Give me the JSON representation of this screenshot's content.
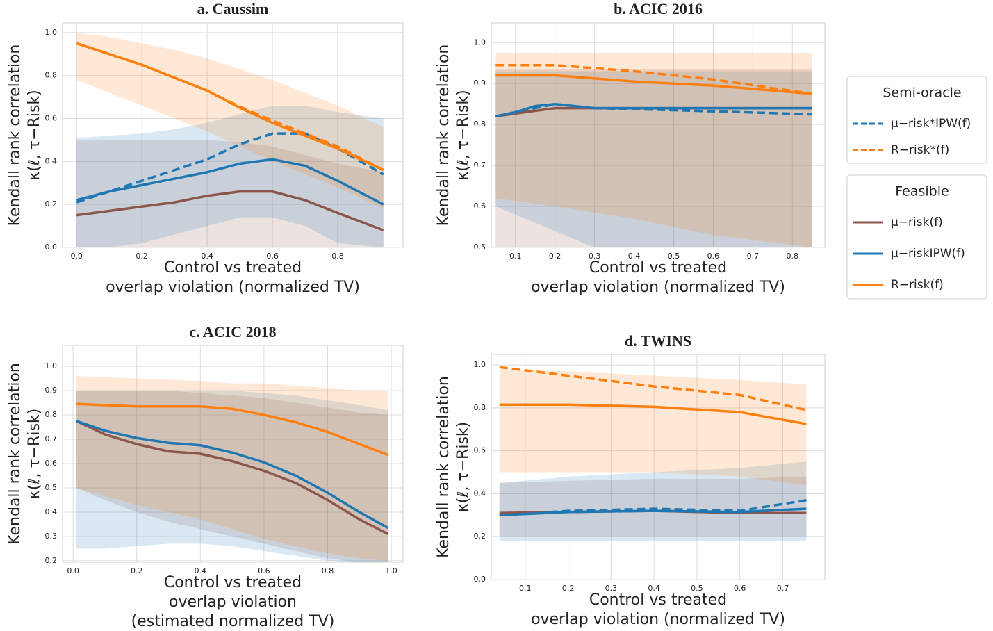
{
  "chart_data": [
    {
      "type": "line",
      "title": "a. Caussim",
      "xlabel": [
        "Control vs treated",
        "overlap violation (normalized TV)"
      ],
      "ylabel": [
        "Kendall rank correlation",
        "κ(ℓ, τ−Risk)"
      ],
      "xlim": [
        -0.043,
        1.0
      ],
      "ylim": [
        0,
        1.045
      ],
      "xticks": [
        {
          "value": 0,
          "label": "0.0"
        },
        0.2,
        0.4,
        0.6,
        0.8
      ],
      "yticks": [
        {
          "value": 0,
          "label": "0.0"
        },
        0.2,
        0.4,
        0.6,
        0.8,
        {
          "value": 1,
          "label": "1.0"
        }
      ],
      "grid": true,
      "series": [
        {
          "name": "μ−risk*IPW(f)",
          "color": "#1f77b4",
          "style": "dashed",
          "x": [
            0,
            0.1,
            0.2,
            0.3,
            0.4,
            0.5,
            0.6,
            0.7,
            0.8,
            0.94
          ],
          "values": [
            0.21,
            0.26,
            0.31,
            0.36,
            0.41,
            0.48,
            0.53,
            0.53,
            0.46,
            0.34
          ]
        },
        {
          "name": "R−risk*(f)",
          "color": "#ff7f0e",
          "style": "dashed",
          "x": [
            0,
            0.1,
            0.2,
            0.3,
            0.4,
            0.5,
            0.6,
            0.7,
            0.8,
            0.94
          ],
          "values": [
            0.95,
            0.9,
            0.85,
            0.79,
            0.73,
            0.655,
            0.59,
            0.53,
            0.47,
            0.36
          ]
        },
        {
          "name": "μ−risk(f)",
          "color": "#8c564b",
          "style": "solid",
          "x": [
            0,
            0.1,
            0.2,
            0.3,
            0.4,
            0.5,
            0.6,
            0.7,
            0.8,
            0.94
          ],
          "values": [
            0.15,
            0.17,
            0.19,
            0.21,
            0.24,
            0.26,
            0.26,
            0.22,
            0.16,
            0.08
          ],
          "lower": [
            0,
            0,
            0,
            0,
            0,
            0,
            0,
            0,
            0,
            0
          ],
          "upper": [
            0.5,
            0.5,
            0.5,
            0.5,
            0.5,
            0.49,
            0.47,
            0.43,
            0.39,
            0.35
          ]
        },
        {
          "name": "μ−riskIPW(f)",
          "color": "#1f77b4",
          "style": "solid",
          "x": [
            0,
            0.1,
            0.2,
            0.3,
            0.4,
            0.5,
            0.6,
            0.7,
            0.8,
            0.94
          ],
          "values": [
            0.22,
            0.26,
            0.29,
            0.32,
            0.35,
            0.39,
            0.41,
            0.38,
            0.31,
            0.2
          ],
          "lower": [
            0,
            0,
            0.02,
            0.06,
            0.1,
            0.14,
            0.14,
            0.1,
            0.02,
            0
          ],
          "upper": [
            0.51,
            0.52,
            0.53,
            0.55,
            0.58,
            0.62,
            0.66,
            0.66,
            0.63,
            0.6
          ]
        },
        {
          "name": "R−risk(f)",
          "color": "#ff7f0e",
          "style": "solid",
          "x": [
            0,
            0.1,
            0.2,
            0.3,
            0.4,
            0.5,
            0.6,
            0.7,
            0.8,
            0.94
          ],
          "values": [
            0.95,
            0.9,
            0.85,
            0.79,
            0.73,
            0.65,
            0.58,
            0.52,
            0.46,
            0.36
          ],
          "lower": [
            0.78,
            0.72,
            0.66,
            0.6,
            0.54,
            0.47,
            0.4,
            0.34,
            0.28,
            0.18
          ],
          "upper": [
            1.0,
            0.98,
            0.95,
            0.92,
            0.88,
            0.83,
            0.78,
            0.72,
            0.66,
            0.56
          ]
        }
      ]
    },
    {
      "type": "line",
      "title": "b. ACIC 2016",
      "xlabel": [
        "Control vs treated",
        "overlap violation (normalized TV)"
      ],
      "ylabel": [
        "Kendall rank correlation",
        "κ(ℓ, τ−Risk)"
      ],
      "xlim": [
        0.039,
        0.882
      ],
      "ylim": [
        0.5,
        1.048
      ],
      "xticks": [
        0.1,
        0.2,
        0.3,
        0.4,
        0.5,
        0.6,
        0.7,
        0.8
      ],
      "yticks": [
        0.5,
        0.6,
        0.7,
        0.8,
        0.9,
        {
          "value": 1,
          "label": "1.0"
        }
      ],
      "grid": true,
      "series": [
        {
          "color": "#1f77b4",
          "style": "dashed",
          "x": [
            0.05,
            0.1,
            0.2,
            0.3,
            0.5,
            0.85
          ],
          "values": [
            0.82,
            0.83,
            0.85,
            0.84,
            0.835,
            0.825
          ]
        },
        {
          "color": "#ff7f0e",
          "style": "dashed",
          "x": [
            0.05,
            0.2,
            0.4,
            0.6,
            0.85
          ],
          "values": [
            0.945,
            0.945,
            0.93,
            0.91,
            0.875
          ]
        },
        {
          "color": "#8c564b",
          "style": "solid",
          "x": [
            0.05,
            0.2,
            0.4,
            0.6,
            0.85
          ],
          "values": [
            0.82,
            0.84,
            0.84,
            0.84,
            0.84
          ],
          "lower": [
            0.5,
            0.5,
            0.5,
            0.5,
            0.5
          ],
          "upper": [
            0.935,
            0.935,
            0.935,
            0.935,
            0.935
          ]
        },
        {
          "color": "#1f77b4",
          "style": "solid",
          "x": [
            0.05,
            0.1,
            0.15,
            0.2,
            0.25,
            0.3,
            0.5,
            0.85
          ],
          "values": [
            0.82,
            0.83,
            0.845,
            0.85,
            0.845,
            0.84,
            0.84,
            0.84
          ],
          "lower": [
            0.6,
            0.58,
            0.56,
            0.54,
            0.52,
            0.5,
            0.5,
            0.5
          ],
          "upper": [
            0.93,
            0.93,
            0.93,
            0.93,
            0.93,
            0.93,
            0.93,
            0.93
          ]
        },
        {
          "color": "#ff7f0e",
          "style": "solid",
          "x": [
            0.05,
            0.2,
            0.4,
            0.6,
            0.85
          ],
          "values": [
            0.92,
            0.92,
            0.905,
            0.895,
            0.875
          ],
          "lower": [
            0.62,
            0.6,
            0.57,
            0.53,
            0.5
          ],
          "upper": [
            0.975,
            0.975,
            0.975,
            0.975,
            0.975
          ]
        }
      ]
    },
    {
      "type": "line",
      "title": "c. ACIC 2018",
      "xlabel": [
        "Control vs treated",
        "overlap violation",
        "(estimated normalized TV)"
      ],
      "ylabel": [
        "Kendall rank correlation",
        "κ(ℓ, τ−Risk)"
      ],
      "xlim": [
        -0.033,
        1.037
      ],
      "ylim": [
        0.194,
        1.086
      ],
      "xticks": [
        {
          "value": 0,
          "label": "0.0"
        },
        0.2,
        0.4,
        0.6,
        0.8,
        {
          "value": 1,
          "label": "1.0"
        }
      ],
      "yticks": [
        0.2,
        0.3,
        0.4,
        0.5,
        0.6,
        0.7,
        0.8,
        0.9,
        {
          "value": 1,
          "label": "1.0"
        }
      ],
      "grid": true,
      "series": [
        {
          "color": "#8c564b",
          "style": "solid",
          "x": [
            0.01,
            0.1,
            0.2,
            0.3,
            0.4,
            0.5,
            0.6,
            0.7,
            0.8,
            0.9,
            0.99
          ],
          "values": [
            0.775,
            0.72,
            0.68,
            0.65,
            0.64,
            0.61,
            0.57,
            0.52,
            0.45,
            0.37,
            0.31
          ],
          "lower": [
            0.5,
            0.45,
            0.4,
            0.36,
            0.33,
            0.3,
            0.27,
            0.24,
            0.21,
            0.194,
            0.194
          ],
          "upper": [
            0.9,
            0.9,
            0.9,
            0.9,
            0.89,
            0.88,
            0.87,
            0.85,
            0.83,
            0.81,
            0.8
          ]
        },
        {
          "color": "#1f77b4",
          "style": "solid",
          "x": [
            0.01,
            0.1,
            0.2,
            0.3,
            0.4,
            0.5,
            0.6,
            0.7,
            0.8,
            0.9,
            0.99
          ],
          "values": [
            0.775,
            0.735,
            0.705,
            0.685,
            0.675,
            0.645,
            0.605,
            0.55,
            0.48,
            0.4,
            0.335
          ],
          "lower": [
            0.25,
            0.25,
            0.26,
            0.27,
            0.27,
            0.26,
            0.24,
            0.22,
            0.2,
            0.194,
            0.194
          ],
          "upper": [
            0.9,
            0.9,
            0.9,
            0.9,
            0.9,
            0.9,
            0.89,
            0.88,
            0.86,
            0.84,
            0.82
          ]
        },
        {
          "color": "#ff7f0e",
          "style": "solid",
          "x": [
            0.01,
            0.2,
            0.4,
            0.5,
            0.6,
            0.7,
            0.8,
            0.9,
            0.99
          ],
          "values": [
            0.845,
            0.835,
            0.835,
            0.825,
            0.8,
            0.77,
            0.73,
            0.68,
            0.635
          ],
          "lower": [
            0.5,
            0.43,
            0.37,
            0.33,
            0.29,
            0.26,
            0.23,
            0.21,
            0.2
          ],
          "upper": [
            0.96,
            0.95,
            0.94,
            0.93,
            0.93,
            0.92,
            0.91,
            0.9,
            0.9
          ]
        }
      ]
    },
    {
      "type": "line",
      "title": "d. TWINS",
      "xlabel": [
        "Control vs treated",
        "overlap violation (normalized TV)"
      ],
      "ylabel": [
        "Kendall rank correlation",
        "κ(ℓ, τ−Risk)"
      ],
      "xlim": [
        0.021,
        0.798
      ],
      "ylim": [
        0,
        1.049
      ],
      "xticks": [
        0.1,
        0.2,
        0.3,
        0.4,
        0.5,
        0.6,
        0.7
      ],
      "yticks": [
        {
          "value": 0,
          "label": "0.0"
        },
        0.2,
        0.4,
        0.6,
        0.8,
        {
          "value": 1,
          "label": "1.0"
        }
      ],
      "grid": true,
      "series": [
        {
          "color": "#1f77b4",
          "style": "dashed",
          "x": [
            0.04,
            0.2,
            0.4,
            0.6,
            0.755
          ],
          "values": [
            0.3,
            0.32,
            0.33,
            0.32,
            0.37
          ]
        },
        {
          "color": "#ff7f0e",
          "style": "dashed",
          "x": [
            0.04,
            0.2,
            0.4,
            0.6,
            0.755
          ],
          "values": [
            0.99,
            0.95,
            0.9,
            0.86,
            0.79
          ]
        },
        {
          "color": "#8c564b",
          "style": "solid",
          "x": [
            0.04,
            0.2,
            0.4,
            0.6,
            0.755
          ],
          "values": [
            0.31,
            0.315,
            0.32,
            0.31,
            0.31
          ],
          "lower": [
            0.2,
            0.2,
            0.2,
            0.2,
            0.2
          ],
          "upper": [
            0.45,
            0.46,
            0.47,
            0.47,
            0.48
          ]
        },
        {
          "color": "#1f77b4",
          "style": "solid",
          "x": [
            0.04,
            0.2,
            0.4,
            0.6,
            0.755
          ],
          "values": [
            0.3,
            0.315,
            0.32,
            0.315,
            0.33
          ],
          "lower": [
            0.18,
            0.18,
            0.18,
            0.18,
            0.18
          ],
          "upper": [
            0.45,
            0.48,
            0.5,
            0.52,
            0.55
          ]
        },
        {
          "color": "#ff7f0e",
          "style": "solid",
          "x": [
            0.04,
            0.2,
            0.4,
            0.6,
            0.755
          ],
          "values": [
            0.815,
            0.815,
            0.805,
            0.78,
            0.725
          ],
          "lower": [
            0.5,
            0.5,
            0.5,
            0.48,
            0.44
          ],
          "upper": [
            0.98,
            0.97,
            0.95,
            0.93,
            0.91
          ]
        }
      ]
    }
  ],
  "legend": {
    "position": "right",
    "groups": [
      {
        "title": "Semi-oracle",
        "style": "dashed"
      },
      {
        "title": "Feasible",
        "style": "solid"
      }
    ]
  }
}
